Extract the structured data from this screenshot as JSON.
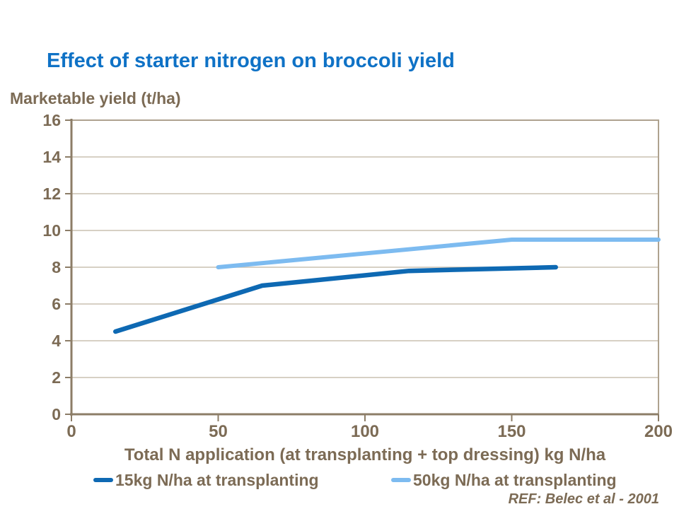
{
  "slide": {
    "title": "Effect of starter nitrogen on broccoli yield",
    "reference": "REF: Belec et al - 2001"
  },
  "chart_data": {
    "type": "line",
    "title": "Effect of starter nitrogen on broccoli yield",
    "ylabel": "Marketable yield (t/ha)",
    "xlabel": "Total N application (at transplanting + top dressing) kg N/ha",
    "xlim": [
      0,
      200
    ],
    "ylim": [
      0,
      16
    ],
    "x_ticks": [
      0,
      50,
      100,
      150,
      200
    ],
    "y_ticks": [
      0,
      2,
      4,
      6,
      8,
      10,
      12,
      14,
      16
    ],
    "grid": "horizontal",
    "legend_position": "bottom",
    "series": [
      {
        "name": "15kg N/ha at transplanting",
        "color": "#0E69B3",
        "x": [
          15,
          65,
          115,
          165
        ],
        "y": [
          4.5,
          7.0,
          7.8,
          8.0
        ]
      },
      {
        "name": "50kg N/ha at transplanting",
        "color": "#7DBBF0",
        "x": [
          50,
          150,
          200
        ],
        "y": [
          8.0,
          9.5,
          9.5
        ]
      }
    ]
  },
  "colors": {
    "title_blue": "#0F72C6",
    "label_brown": "#7C6B55",
    "axis_brown": "#8C7D67",
    "plot_border": "#AEA28F",
    "gridline": "#CAC0B0"
  }
}
